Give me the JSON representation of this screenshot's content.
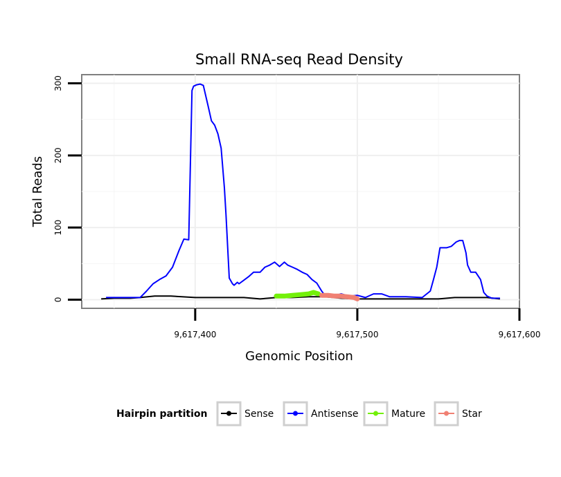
{
  "chart_data": {
    "type": "line",
    "title": "Small RNA-seq Read Density",
    "xlabel": "Genomic Position",
    "ylabel": "Total Reads",
    "xlim": [
      9617330,
      9617600
    ],
    "ylim": [
      -12,
      312
    ],
    "x_ticks": [
      9617400,
      9617500,
      9617600
    ],
    "x_tick_labels": [
      "9,617,400",
      "9,617,500",
      "9,617,600"
    ],
    "y_ticks": [
      0,
      100,
      200,
      300
    ],
    "y_tick_labels": [
      "0",
      "100",
      "200",
      "300"
    ],
    "grid": true,
    "legend": {
      "title": "Hairpin partition",
      "position": "bottom",
      "entries": [
        "Sense",
        "Antisense",
        "Mature",
        "Star"
      ]
    },
    "series": [
      {
        "name": "Sense",
        "color": "#000000",
        "x": [
          9617342,
          9617350,
          9617360,
          9617366,
          9617375,
          9617385,
          9617400,
          9617410,
          9617420,
          9617430,
          9617440,
          9617450,
          9617460,
          9617470,
          9617480,
          9617490,
          9617500,
          9617510,
          9617520,
          9617530,
          9617540,
          9617550,
          9617560,
          9617570,
          9617580,
          9617588
        ],
        "values": [
          1,
          2,
          2,
          3,
          5,
          5,
          3,
          3,
          3,
          3,
          1,
          3,
          3,
          4,
          4,
          2,
          1,
          1,
          1,
          1,
          1,
          1,
          3,
          3,
          3,
          1
        ]
      },
      {
        "name": "Antisense",
        "color": "#0000ff",
        "x": [
          9617345,
          9617350,
          9617360,
          9617366,
          9617370,
          9617374,
          9617378,
          9617382,
          9617386,
          9617390,
          9617393,
          9617396,
          9617398,
          9617399,
          9617401,
          9617403,
          9617405,
          9617408,
          9617410,
          9617412,
          9617414,
          9617416,
          9617418,
          9617419,
          9617421,
          9617423,
          9617424,
          9617426,
          9617427,
          9617430,
          9617433,
          9617436,
          9617440,
          9617443,
          9617446,
          9617449,
          9617452,
          9617455,
          9617457,
          9617460,
          9617463,
          9617466,
          9617469,
          9617472,
          9617475,
          9617478,
          9617480,
          9617485,
          9617490,
          9617495,
          9617500,
          9617505,
          9617510,
          9617515,
          9617520,
          9617530,
          9617540,
          9617545,
          9617547,
          9617549,
          9617551,
          9617553,
          9617555,
          9617558,
          9617561,
          9617563,
          9617565,
          9617567,
          9617568,
          9617570,
          9617573,
          9617576,
          9617578,
          9617580,
          9617583,
          9617588
        ],
        "values": [
          3,
          3,
          3,
          3,
          12,
          22,
          28,
          33,
          45,
          68,
          84,
          83,
          290,
          296,
          298,
          299,
          297,
          268,
          248,
          242,
          230,
          210,
          155,
          118,
          30,
          22,
          20,
          24,
          22,
          27,
          32,
          38,
          38,
          45,
          48,
          52,
          46,
          52,
          48,
          45,
          42,
          38,
          35,
          28,
          23,
          12,
          6,
          5,
          8,
          5,
          6,
          3,
          8,
          8,
          4,
          4,
          3,
          12,
          28,
          45,
          72,
          72,
          72,
          74,
          80,
          82,
          82,
          65,
          48,
          38,
          38,
          28,
          10,
          5,
          2,
          2
        ]
      },
      {
        "name": "Mature",
        "color": "#73f00a",
        "x": [
          9617450,
          9617455,
          9617460,
          9617465,
          9617470,
          9617473,
          9617476
        ],
        "values": [
          5,
          5,
          6,
          7,
          8,
          10,
          8
        ]
      },
      {
        "name": "Star",
        "color": "#f08073",
        "x": [
          9617478,
          9617482,
          9617486,
          9617490,
          9617494,
          9617498,
          9617500
        ],
        "values": [
          6,
          6,
          5,
          5,
          4,
          3,
          1
        ]
      }
    ]
  }
}
